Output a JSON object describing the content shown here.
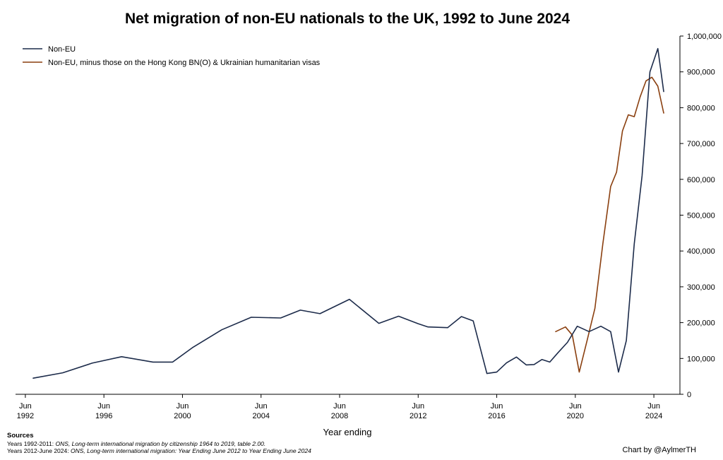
{
  "chart_data": {
    "type": "line",
    "title": "Net migration of non-EU nationals to the UK, 1992 to June 2024",
    "xlabel": "Year ending",
    "ylabel": "",
    "xlim": [
      1992.0,
      2025.0
    ],
    "ylim": [
      0,
      1000000
    ],
    "x_ticks": [
      {
        "value": 1992.5,
        "line1": "Jun",
        "line2": "1992"
      },
      {
        "value": 1996.5,
        "line1": "Jun",
        "line2": "1996"
      },
      {
        "value": 2000.5,
        "line1": "Jun",
        "line2": "2000"
      },
      {
        "value": 2004.5,
        "line1": "Jun",
        "line2": "2004"
      },
      {
        "value": 2008.5,
        "line1": "Jun",
        "line2": "2008"
      },
      {
        "value": 2012.5,
        "line1": "Jun",
        "line2": "2012"
      },
      {
        "value": 2016.5,
        "line1": "Jun",
        "line2": "2016"
      },
      {
        "value": 2020.5,
        "line1": "Jun",
        "line2": "2020"
      },
      {
        "value": 2024.5,
        "line1": "Jun",
        "line2": "2024"
      }
    ],
    "y_ticks": [
      {
        "value": 0,
        "label": "0"
      },
      {
        "value": 100000,
        "label": "100,000"
      },
      {
        "value": 200000,
        "label": "200,000"
      },
      {
        "value": 300000,
        "label": "300,000"
      },
      {
        "value": 400000,
        "label": "400,000"
      },
      {
        "value": 500000,
        "label": "500,000"
      },
      {
        "value": 600000,
        "label": "600,000"
      },
      {
        "value": 700000,
        "label": "700,000"
      },
      {
        "value": 800000,
        "label": "800,000"
      },
      {
        "value": 900000,
        "label": "900,000"
      },
      {
        "value": 1000000,
        "label": "1,000,000"
      }
    ],
    "series": [
      {
        "name": "Non-EU",
        "color": "#1c2b4a",
        "x": [
          1992.9,
          1994.4,
          1995.9,
          1997.4,
          1999.0,
          2000.0,
          2001.0,
          2002.5,
          2004.0,
          2005.5,
          2006.5,
          2007.5,
          2009.0,
          2010.5,
          2011.5,
          2012.5,
          2013.0,
          2014.0,
          2014.7,
          2015.3,
          2016.0,
          2016.5,
          2017.0,
          2017.5,
          2018.0,
          2018.4,
          2018.8,
          2019.2,
          2019.6,
          2020.1,
          2020.6,
          2021.2,
          2021.8,
          2022.3,
          2022.7,
          2023.1,
          2023.5,
          2023.9,
          2024.3,
          2024.7,
          2025.0
        ],
        "values": [
          45000,
          60000,
          87000,
          105000,
          90000,
          90000,
          130000,
          180000,
          215000,
          213000,
          235000,
          225000,
          265000,
          198000,
          218000,
          197000,
          188000,
          186000,
          217000,
          205000,
          58000,
          62000,
          88000,
          104000,
          82000,
          83000,
          97000,
          90000,
          115000,
          145000,
          190000,
          175000,
          190000,
          175000,
          62000,
          150000,
          420000,
          610000,
          900000,
          965000,
          845000
        ]
      },
      {
        "name": "Non-EU, minus those on the Hong Kong BN(O) & Ukrainian humanitarian visas",
        "color": "#8a3f0f",
        "x": [
          2019.5,
          2020.0,
          2020.35,
          2020.7,
          2021.1,
          2021.5,
          2021.9,
          2022.3,
          2022.6,
          2022.9,
          2023.2,
          2023.5,
          2023.8,
          2024.1,
          2024.4,
          2024.7,
          2025.0
        ],
        "values": [
          175000,
          188000,
          165000,
          62000,
          150000,
          240000,
          420000,
          580000,
          620000,
          735000,
          780000,
          775000,
          830000,
          875000,
          885000,
          860000,
          785000
        ]
      }
    ],
    "legend_position": "top-left"
  },
  "sources": {
    "heading": "Sources",
    "line1_prefix": "Years 1992-2011: ",
    "line1_italic": "ONS, Long-term international migration by citizenship 1964 to 2019, table 2.00.",
    "line2_prefix": "Years 2012-June 2024: ",
    "line2_italic": "ONS, Long-term international migration: Year Ending June 2012 to Year Ending June 2024"
  },
  "credit": "Chart by @AylmerTH"
}
